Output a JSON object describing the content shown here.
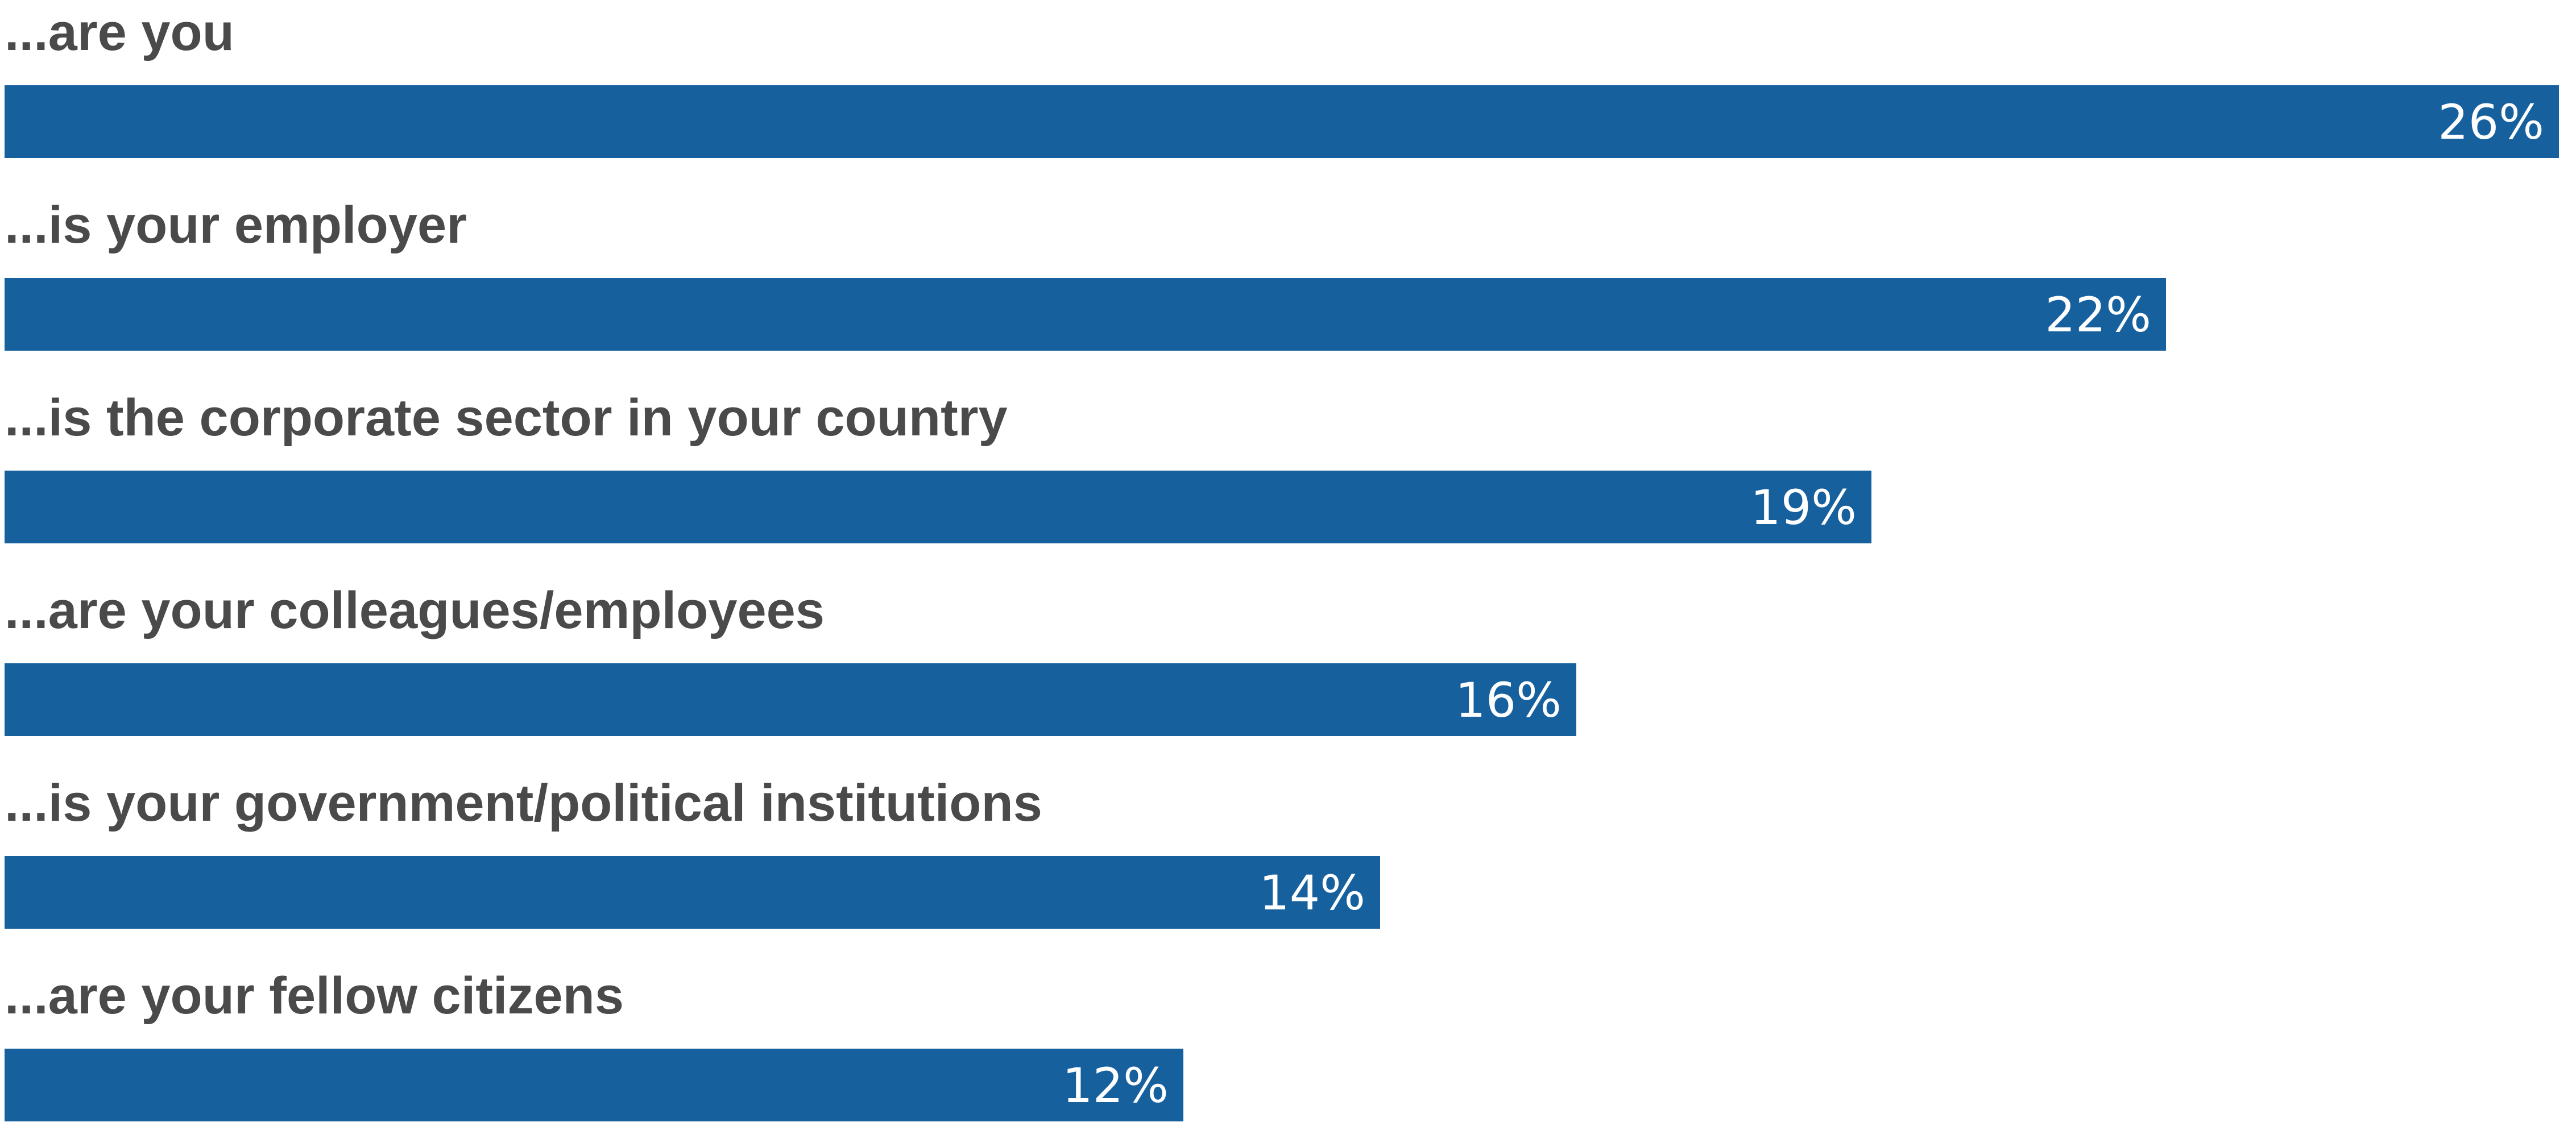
{
  "chart_data": {
    "type": "bar",
    "orientation": "horizontal",
    "categories": [
      "...are you",
      "...is your employer",
      "...is the corporate sector in your country",
      "...are your colleagues/employees",
      "...is your government/political institutions",
      "...are your fellow citizens"
    ],
    "values": [
      26,
      22,
      19,
      16,
      14,
      12
    ],
    "value_labels": [
      "26%",
      "22%",
      "19%",
      "16%",
      "14%",
      "12%"
    ],
    "unit": "%",
    "xlim": [
      0,
      26
    ],
    "grid": false,
    "legend": "none",
    "colors": {
      "bar": "#16609e",
      "label_text": "#4a4a4a",
      "value_text": "#ffffff"
    }
  }
}
